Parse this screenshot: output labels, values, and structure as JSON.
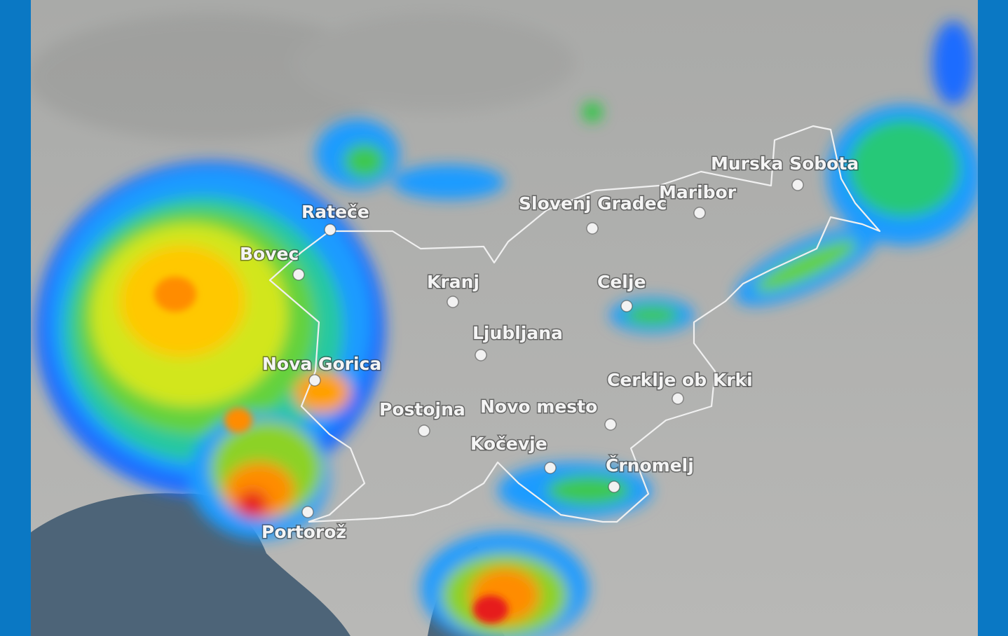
{
  "map": {
    "type": "weather radar precipitation map",
    "frame_color": "#0a78c4",
    "land_color": "#b4b5b3",
    "sea_color": "#4d6478",
    "border_color": "#f0f0f0",
    "radar_scale_colors": [
      "#1e3cff",
      "#1e9bff",
      "#00d2c8",
      "#28c83c",
      "#c8e61e",
      "#ffd200",
      "#ff8c00",
      "#e61e1e"
    ],
    "cities": [
      {
        "name": "Rateče"
      },
      {
        "name": "Bovec"
      },
      {
        "name": "Kranj"
      },
      {
        "name": "Ljubljana"
      },
      {
        "name": "Nova Gorica"
      },
      {
        "name": "Postojna"
      },
      {
        "name": "Novo mesto"
      },
      {
        "name": "Kočevje"
      },
      {
        "name": "Črnomelj"
      },
      {
        "name": "Cerklje ob Krki"
      },
      {
        "name": "Celje"
      },
      {
        "name": "Slovenj Gradec"
      },
      {
        "name": "Maribor"
      },
      {
        "name": "Murska Sobota"
      },
      {
        "name": "Portorož"
      }
    ]
  }
}
